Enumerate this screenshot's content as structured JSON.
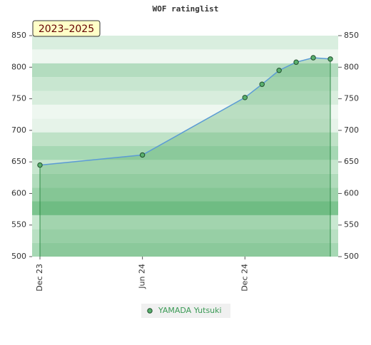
{
  "chart_data": {
    "type": "area-line",
    "title": "WOF ratinglist",
    "annotation": "2023–2025",
    "x": [
      "2023-12",
      "2024-06",
      "2024-12",
      "2025-01",
      "2025-02",
      "2025-03",
      "2025-04",
      "2025-05"
    ],
    "series": [
      {
        "name": "YAMADA Yutsuki",
        "color": "#5ab06e",
        "values": [
          645,
          661,
          752,
          773,
          795,
          808,
          815,
          813
        ]
      }
    ],
    "xlim": [
      "2023-12",
      "2025-05"
    ],
    "xticks": [
      {
        "value": "2023-12",
        "label": "Dec 23"
      },
      {
        "value": "2024-06",
        "label": "Jun 24"
      },
      {
        "value": "2024-12",
        "label": "Dec 24"
      }
    ],
    "ylim": [
      500,
      850
    ],
    "yticks": [
      500,
      550,
      600,
      650,
      700,
      750,
      800,
      850
    ],
    "y2lim": [
      500,
      850
    ],
    "y2ticks": [
      500,
      550,
      600,
      650,
      700,
      750,
      800,
      850
    ]
  }
}
